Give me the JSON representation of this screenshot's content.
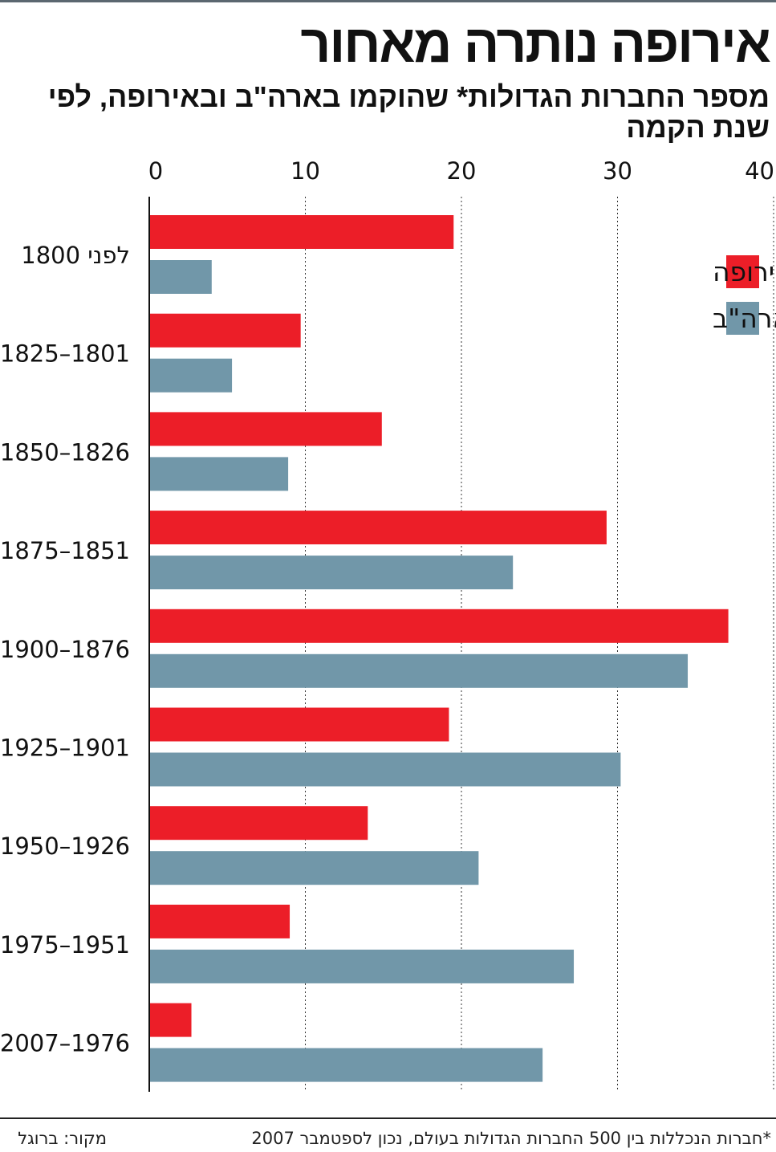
{
  "title": "אירופה נותרה מאחור",
  "subtitle": "מספר החברות הגדולות* שהוקמו בארה\"ב ובאירופה, לפי שנת הקמה",
  "footnote": "*חברות הנכללות בין 500 החברות הגדולות בעולם, נכון לספטמבר 2007",
  "source": "מקור: ברוגל",
  "colors": {
    "europe": "#ec1e28",
    "usa": "#7197a9"
  },
  "chart_data": {
    "type": "bar",
    "orientation": "horizontal",
    "categories": [
      "לפני 1800",
      "1825–1801",
      "1850–1826",
      "1875–1851",
      "1900–1876",
      "1925–1901",
      "1950–1926",
      "1975–1951",
      "2007–1976"
    ],
    "series": [
      {
        "name": "אירופה",
        "color": "#ec1e28",
        "values": [
          19.5,
          9.7,
          14.9,
          29.3,
          37.1,
          19.2,
          14.0,
          9.0,
          2.7
        ]
      },
      {
        "name": "ארה\"ב",
        "color": "#7197a9",
        "values": [
          4.0,
          5.3,
          8.9,
          23.3,
          34.5,
          30.2,
          21.1,
          27.2,
          25.2
        ]
      }
    ],
    "xlim": [
      0,
      40
    ],
    "xticks": [
      0,
      10,
      20,
      30,
      40
    ],
    "grid": true,
    "legend": "top-right"
  }
}
